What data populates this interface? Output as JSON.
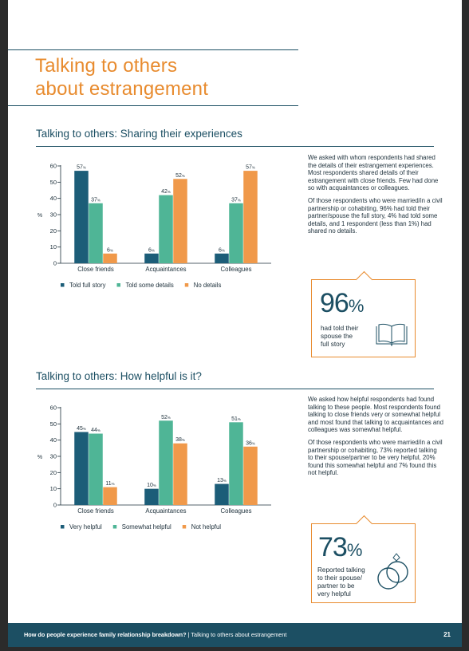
{
  "title_line1": "Talking to others",
  "title_line2": "about estrangement",
  "section1": {
    "heading": "Talking to others: Sharing their experiences",
    "para1": "We asked with whom respondents had shared the details of their estrangement experiences. Most respondents shared details of their estrangement with close friends. Few had done so with acquaintances or colleagues.",
    "para2": "Of those respondents who were married/in a civil partnership or cohabiting, 96% had told their partner/spouse the full story, 4% had told some details, and 1 respondent (less than 1%) had shared no details.",
    "callout": {
      "big": "96",
      "pct": "%",
      "text": [
        "had told their",
        "spouse the",
        "full story"
      ],
      "icon": "open-book-icon"
    }
  },
  "section2": {
    "heading": "Talking to others: How helpful is it?",
    "para1": "We asked how helpful respondents had found talking to these people. Most respondents found talking to close friends very or somewhat helpful and most found that talking to acquaintances and colleagues was somewhat helpful.",
    "para2": "Of those respondents who were married/in a civil partnership or cohabiting, 73% reported talking to their spouse/partner to be very helpful, 20% found this somewhat helpful and 7% found this not helpful.",
    "callout": {
      "big": "73",
      "pct": "%",
      "text": [
        "Reported talking",
        "to their spouse/",
        "partner to be",
        "very helpful"
      ],
      "icon": "wedding-rings-icon"
    }
  },
  "colors": {
    "dark": "#1c5d78",
    "teal": "#4fb596",
    "orange": "#f0994a",
    "title": "#e88b2e"
  },
  "chart_data": [
    {
      "type": "bar",
      "title": "Talking to others: Sharing their experiences",
      "ylabel": "%",
      "ylim": [
        0,
        60
      ],
      "yticks": [
        0,
        10,
        20,
        30,
        40,
        50,
        60
      ],
      "categories": [
        "Close friends",
        "Acquaintances",
        "Colleagues"
      ],
      "series": [
        {
          "name": "Told full story",
          "values": [
            57,
            6,
            6
          ],
          "color": "#1c5d78"
        },
        {
          "name": "Told some details",
          "values": [
            37,
            42,
            37
          ],
          "color": "#4fb596"
        },
        {
          "name": "No details",
          "values": [
            6,
            52,
            57
          ],
          "color": "#f0994a"
        }
      ],
      "value_suffix": "%",
      "legend": "bottom"
    },
    {
      "type": "bar",
      "title": "Talking to others: How helpful is it?",
      "ylabel": "%",
      "ylim": [
        0,
        60
      ],
      "yticks": [
        0,
        10,
        20,
        30,
        40,
        50,
        60
      ],
      "categories": [
        "Close friends",
        "Acquaintances",
        "Colleagues"
      ],
      "series": [
        {
          "name": "Very helpful",
          "values": [
            45,
            10,
            13
          ],
          "color": "#1c5d78"
        },
        {
          "name": "Somewhat helpful",
          "values": [
            44,
            52,
            51
          ],
          "color": "#4fb596"
        },
        {
          "name": "Not helpful",
          "values": [
            11,
            38,
            36
          ],
          "color": "#f0994a"
        }
      ],
      "value_suffix": "%",
      "legend": "bottom"
    }
  ],
  "footer": {
    "report": "How do people experience family relationship breakdown?",
    "separator": " | ",
    "section": "Talking to others about estrangement",
    "page_number": "21"
  }
}
